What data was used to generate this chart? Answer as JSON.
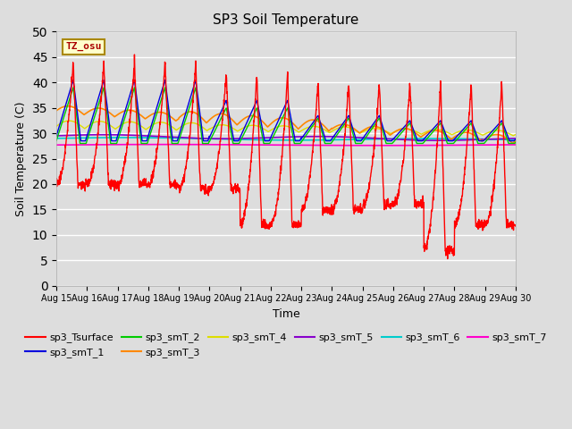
{
  "title": "SP3 Soil Temperature",
  "ylabel": "Soil Temperature (C)",
  "xlabel": "Time",
  "ylim": [
    0,
    50
  ],
  "xlim": [
    0,
    15
  ],
  "x_tick_labels": [
    "Aug 15",
    "Aug 16",
    "Aug 17",
    "Aug 18",
    "Aug 19",
    "Aug 20",
    "Aug 21",
    "Aug 22",
    "Aug 23",
    "Aug 24",
    "Aug 25",
    "Aug 26",
    "Aug 27",
    "Aug 28",
    "Aug 29",
    "Aug 30"
  ],
  "annotation_text": "TZ_osu",
  "annotation_color": "#aa0000",
  "annotation_bg": "#ffffcc",
  "annotation_border": "#aa8800",
  "series_colors": {
    "sp3_Tsurface": "#ff0000",
    "sp3_smT_1": "#0000dd",
    "sp3_smT_2": "#00cc00",
    "sp3_smT_3": "#ff8800",
    "sp3_smT_4": "#dddd00",
    "sp3_smT_5": "#8800cc",
    "sp3_smT_6": "#00cccc",
    "sp3_smT_7": "#ff00cc"
  },
  "bg_color": "#dddddd",
  "plot_bg_color": "#dddddd",
  "fig_bg_color": "#dddddd"
}
